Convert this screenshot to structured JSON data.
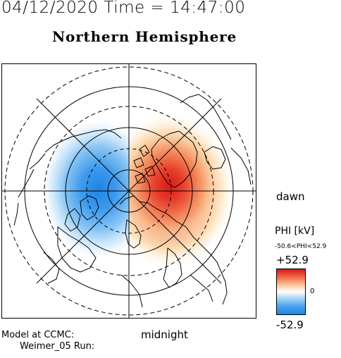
{
  "header": {
    "datetime": "04/12/2020 Time = 14:47:00"
  },
  "map": {
    "title": "Northern Hemisphere",
    "labels": {
      "dawn": "dawn",
      "midnight": "midnight"
    },
    "icon": "polar-projection-map"
  },
  "colorbar": {
    "title": "PHI [kV]",
    "range_text": "-50.6<PHI<52.9",
    "max_label": "+52.9",
    "min_label": "-52.9",
    "zero_label": "0",
    "colors": {
      "high": "#d81818",
      "mid": "#ffffff",
      "low": "#1e84e6"
    }
  },
  "credits": {
    "line1": "Model at CCMC:",
    "line2": "Weimer_05 Run:"
  }
}
